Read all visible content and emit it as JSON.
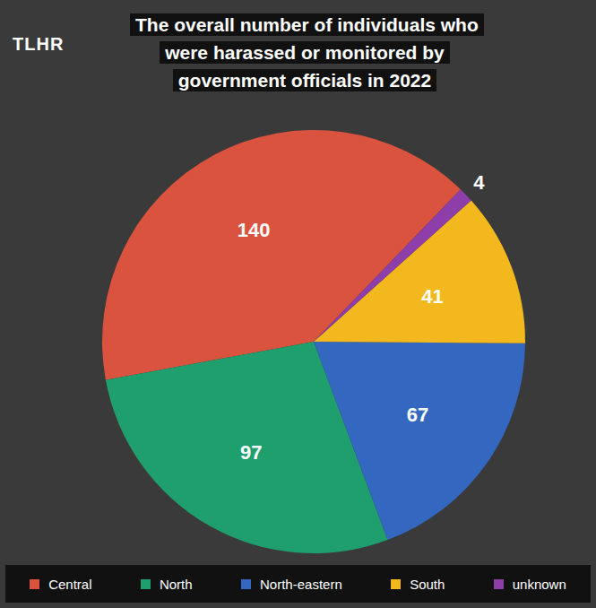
{
  "logo": "TLHR",
  "chart_data": {
    "type": "pie",
    "title": "The overall number of individuals who were harassed or monitored by government officials in 2022",
    "categories": [
      "Central",
      "North",
      "North-eastern",
      "South",
      "unknown"
    ],
    "values": [
      140,
      97,
      67,
      41,
      4
    ],
    "colors": [
      "#d9533f",
      "#1f9e6e",
      "#3468c0",
      "#f2b81e",
      "#8e3ea8"
    ],
    "data_labels": true,
    "legend": "bottom"
  }
}
